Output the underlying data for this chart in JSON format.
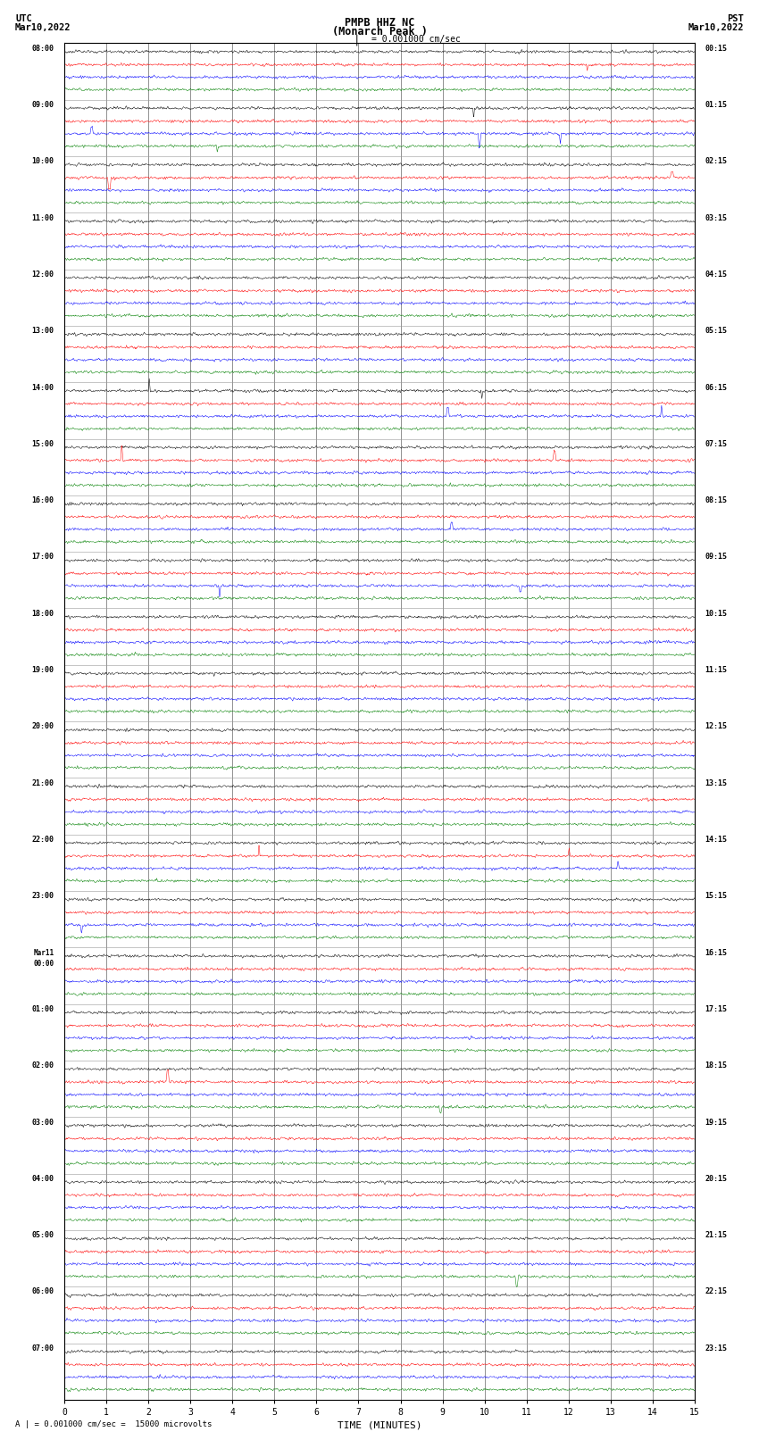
{
  "title_line1": "PMPB HHZ NC",
  "title_line2": "(Monarch Peak )",
  "title_scale": "| = 0.001000 cm/sec",
  "left_header_line1": "UTC",
  "left_header_line2": "Mar10,2022",
  "right_header_line1": "PST",
  "right_header_line2": "Mar10,2022",
  "xlabel": "TIME (MINUTES)",
  "footer": "A | = 0.001000 cm/sec =  15000 microvolts",
  "trace_colors": [
    "black",
    "red",
    "blue",
    "green"
  ],
  "background_color": "white",
  "xlim": [
    0,
    15
  ],
  "xticks": [
    0,
    1,
    2,
    3,
    4,
    5,
    6,
    7,
    8,
    9,
    10,
    11,
    12,
    13,
    14,
    15
  ],
  "fig_width": 8.5,
  "fig_height": 16.13,
  "dpi": 100,
  "utc_labels": [
    "08:00",
    "09:00",
    "10:00",
    "11:00",
    "12:00",
    "13:00",
    "14:00",
    "15:00",
    "16:00",
    "17:00",
    "18:00",
    "19:00",
    "20:00",
    "21:00",
    "22:00",
    "23:00",
    "Mar11\n00:00",
    "01:00",
    "02:00",
    "03:00",
    "04:00",
    "05:00",
    "06:00",
    "07:00"
  ],
  "pst_labels": [
    "00:15",
    "01:15",
    "02:15",
    "03:15",
    "04:15",
    "05:15",
    "06:15",
    "07:15",
    "08:15",
    "09:15",
    "10:15",
    "11:15",
    "12:15",
    "13:15",
    "14:15",
    "15:15",
    "16:15",
    "17:15",
    "18:15",
    "19:15",
    "20:15",
    "21:15",
    "22:15",
    "23:15"
  ]
}
